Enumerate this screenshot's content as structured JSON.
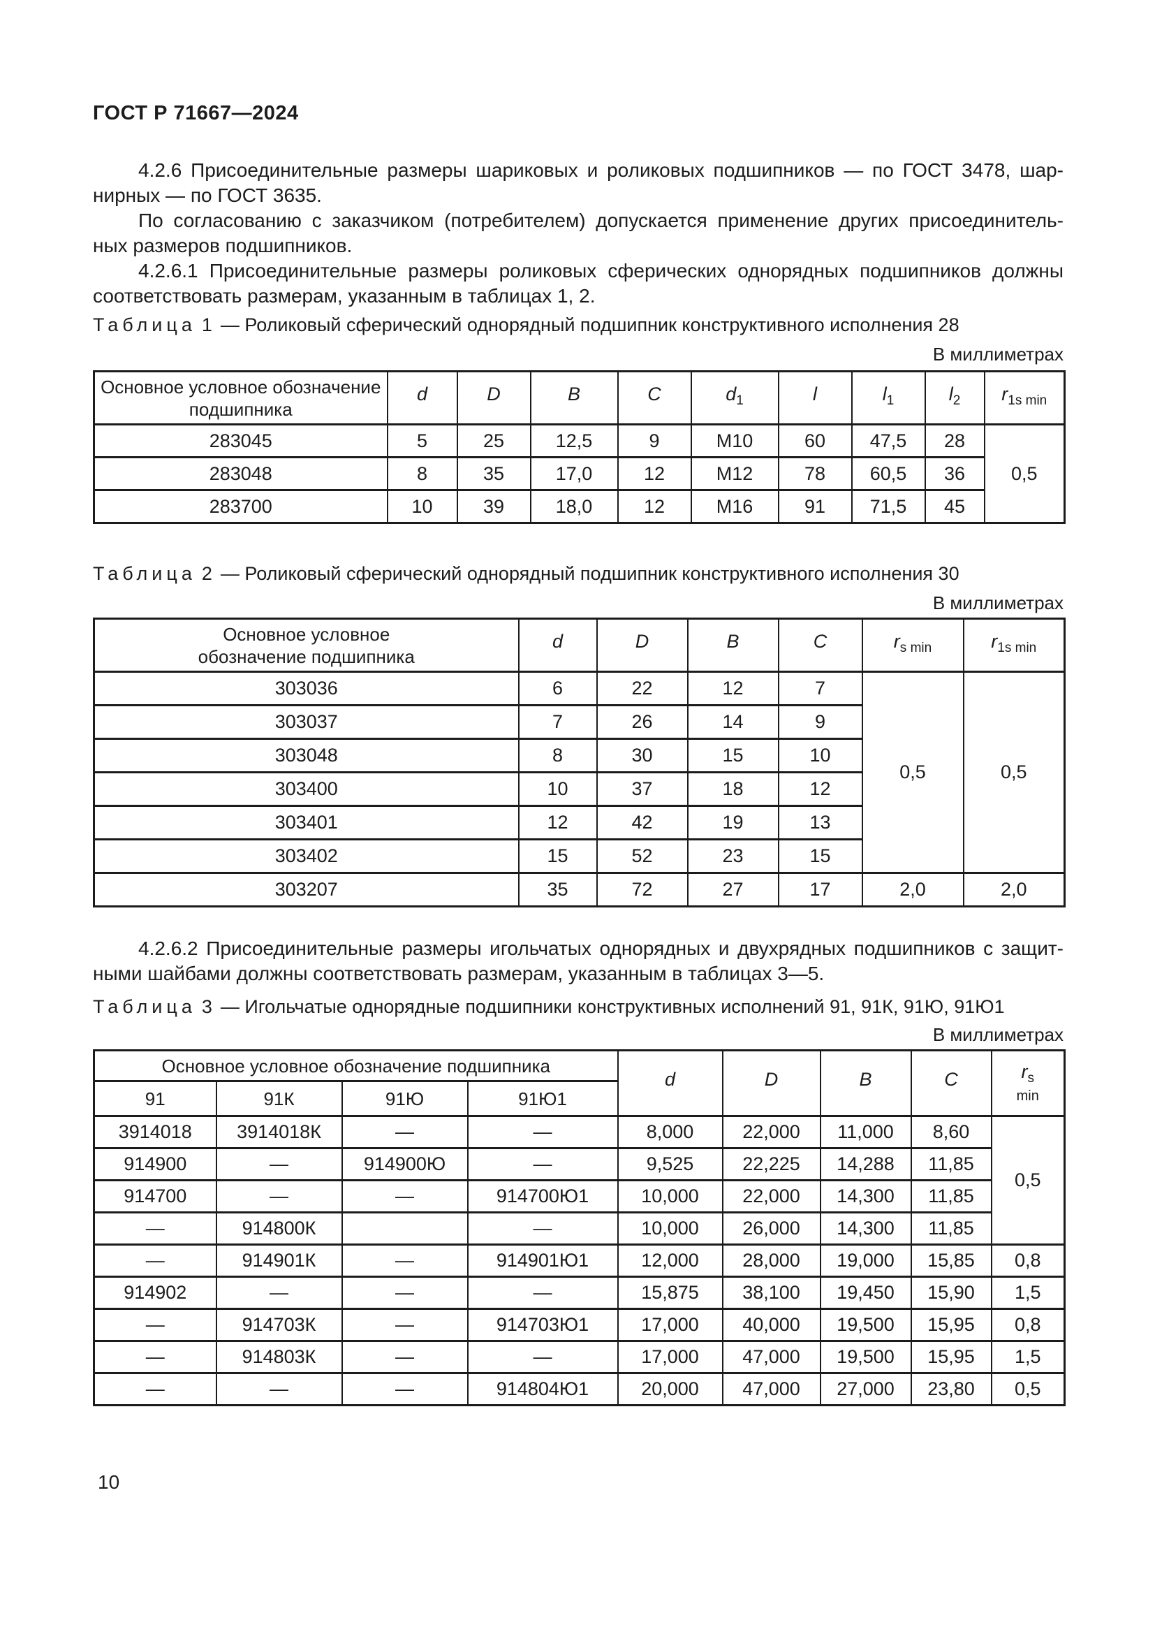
{
  "page": {
    "header": "ГОСТ Р 71667—2024",
    "page_number": "10"
  },
  "paragraphs": {
    "p426": [
      "4.2.6 Присоединительные размеры шариковых и роликовых подшипников — по ГОСТ 3478, шар-",
      "нирных — по ГОСТ 3635."
    ],
    "agree": [
      "По согласованию с заказчиком (потребителем) допускается применение других присоединитель-",
      "ных размеров подшипников."
    ],
    "p4261": [
      "4.2.6.1 Присоединительные размеры роликовых сферических однорядных подшипников должны",
      "соответствовать размерам, указанным в таблицах 1, 2."
    ],
    "p4262": [
      "4.2.6.2 Присоединительные размеры игольчатых однорядных и двухрядных подшипников с защит-",
      "ными шайбами должны соответствовать размерам, указанным в таблицах 3—5."
    ]
  },
  "units_note": "В миллиметрах",
  "table1": {
    "caption_word": "Таблица",
    "caption_num": "1",
    "caption_text": "— Роликовый сферический однорядный подшипник конструктивного исполнения 28",
    "name_header": [
      "Основное условное обозначение",
      "подшипника"
    ],
    "col_symbols": [
      {
        "s": "d",
        "sub": ""
      },
      {
        "s": "D",
        "sub": ""
      },
      {
        "s": "B",
        "sub": ""
      },
      {
        "s": "C",
        "sub": ""
      },
      {
        "s": "d",
        "sub": "1"
      },
      {
        "s": "l",
        "sub": ""
      },
      {
        "s": "l",
        "sub": "1"
      },
      {
        "s": "l",
        "sub": "2"
      },
      {
        "s": "r",
        "sub": "1s min"
      }
    ],
    "rows": [
      [
        "283045",
        "5",
        "25",
        "12,5",
        "9",
        "М10",
        "60",
        "47,5",
        "28",
        {
          "v": "0,5",
          "rowspan": 3
        }
      ],
      [
        "283048",
        "8",
        "35",
        "17,0",
        "12",
        "М12",
        "78",
        "60,5",
        "36"
      ],
      [
        "283700",
        "10",
        "39",
        "18,0",
        "12",
        "М16",
        "91",
        "71,5",
        "45"
      ]
    ]
  },
  "table2": {
    "caption_word": "Таблица",
    "caption_num": "2",
    "caption_text": "— Роликовый сферический однорядный подшипник конструктивного исполнения 30",
    "name_header": [
      "Основное условное",
      "обозначение подшипника"
    ],
    "col_symbols": [
      {
        "s": "d",
        "sub": ""
      },
      {
        "s": "D",
        "sub": ""
      },
      {
        "s": "B",
        "sub": ""
      },
      {
        "s": "C",
        "sub": ""
      },
      {
        "s": "r",
        "sub": "s min"
      },
      {
        "s": "r",
        "sub": "1s min"
      }
    ],
    "rows": [
      [
        "303036",
        "6",
        "22",
        "12",
        "7",
        {
          "v": "0,5",
          "rowspan": 6
        },
        {
          "v": "0,5",
          "rowspan": 6
        }
      ],
      [
        "303037",
        "7",
        "26",
        "14",
        "9"
      ],
      [
        "303048",
        "8",
        "30",
        "15",
        "10"
      ],
      [
        "303400",
        "10",
        "37",
        "18",
        "12"
      ],
      [
        "303401",
        "12",
        "42",
        "19",
        "13"
      ],
      [
        "303402",
        "15",
        "52",
        "23",
        "15"
      ],
      [
        "303207",
        "35",
        "72",
        "27",
        "17",
        "2,0",
        "2,0"
      ]
    ]
  },
  "table3": {
    "caption_word": "Таблица",
    "caption_num": "3",
    "caption_text": "— Игольчатые однорядные подшипники конструктивных исполнений 91, 91К, 91Ю, 91Ю1",
    "name_header": "Основное условное обозначение подшипника",
    "sub_headers": [
      "91",
      "91К",
      "91Ю",
      "91Ю1"
    ],
    "col_symbols": [
      {
        "s": "d",
        "sub": ""
      },
      {
        "s": "D",
        "sub": ""
      },
      {
        "s": "B",
        "sub": ""
      },
      {
        "s": "C",
        "sub": ""
      }
    ],
    "rs_header": {
      "s": "r",
      "sub": "s",
      "line2": "min"
    },
    "rows": [
      [
        "3914018",
        "3914018К",
        "—",
        "—",
        "8,000",
        "22,000",
        "11,000",
        "8,60",
        {
          "v": "0,5",
          "rowspan": 4
        }
      ],
      [
        "914900",
        "—",
        "914900Ю",
        "—",
        "9,525",
        "22,225",
        "14,288",
        "11,85"
      ],
      [
        "914700",
        "—",
        "—",
        "914700Ю1",
        "10,000",
        "22,000",
        "14,300",
        "11,85"
      ],
      [
        "—",
        "914800К",
        "",
        "—",
        "10,000",
        "26,000",
        "14,300",
        "11,85"
      ],
      [
        "—",
        "914901К",
        "—",
        "914901Ю1",
        "12,000",
        "28,000",
        "19,000",
        "15,85",
        "0,8"
      ],
      [
        "914902",
        "—",
        "—",
        "—",
        "15,875",
        "38,100",
        "19,450",
        "15,90",
        "1,5"
      ],
      [
        "—",
        "914703К",
        "—",
        "914703Ю1",
        "17,000",
        "40,000",
        "19,500",
        "15,95",
        "0,8"
      ],
      [
        "—",
        "914803К",
        "—",
        "—",
        "17,000",
        "47,000",
        "19,500",
        "15,95",
        "1,5"
      ],
      [
        "—",
        "—",
        "—",
        "914804Ю1",
        "20,000",
        "47,000",
        "27,000",
        "23,80",
        "0,5"
      ]
    ]
  }
}
